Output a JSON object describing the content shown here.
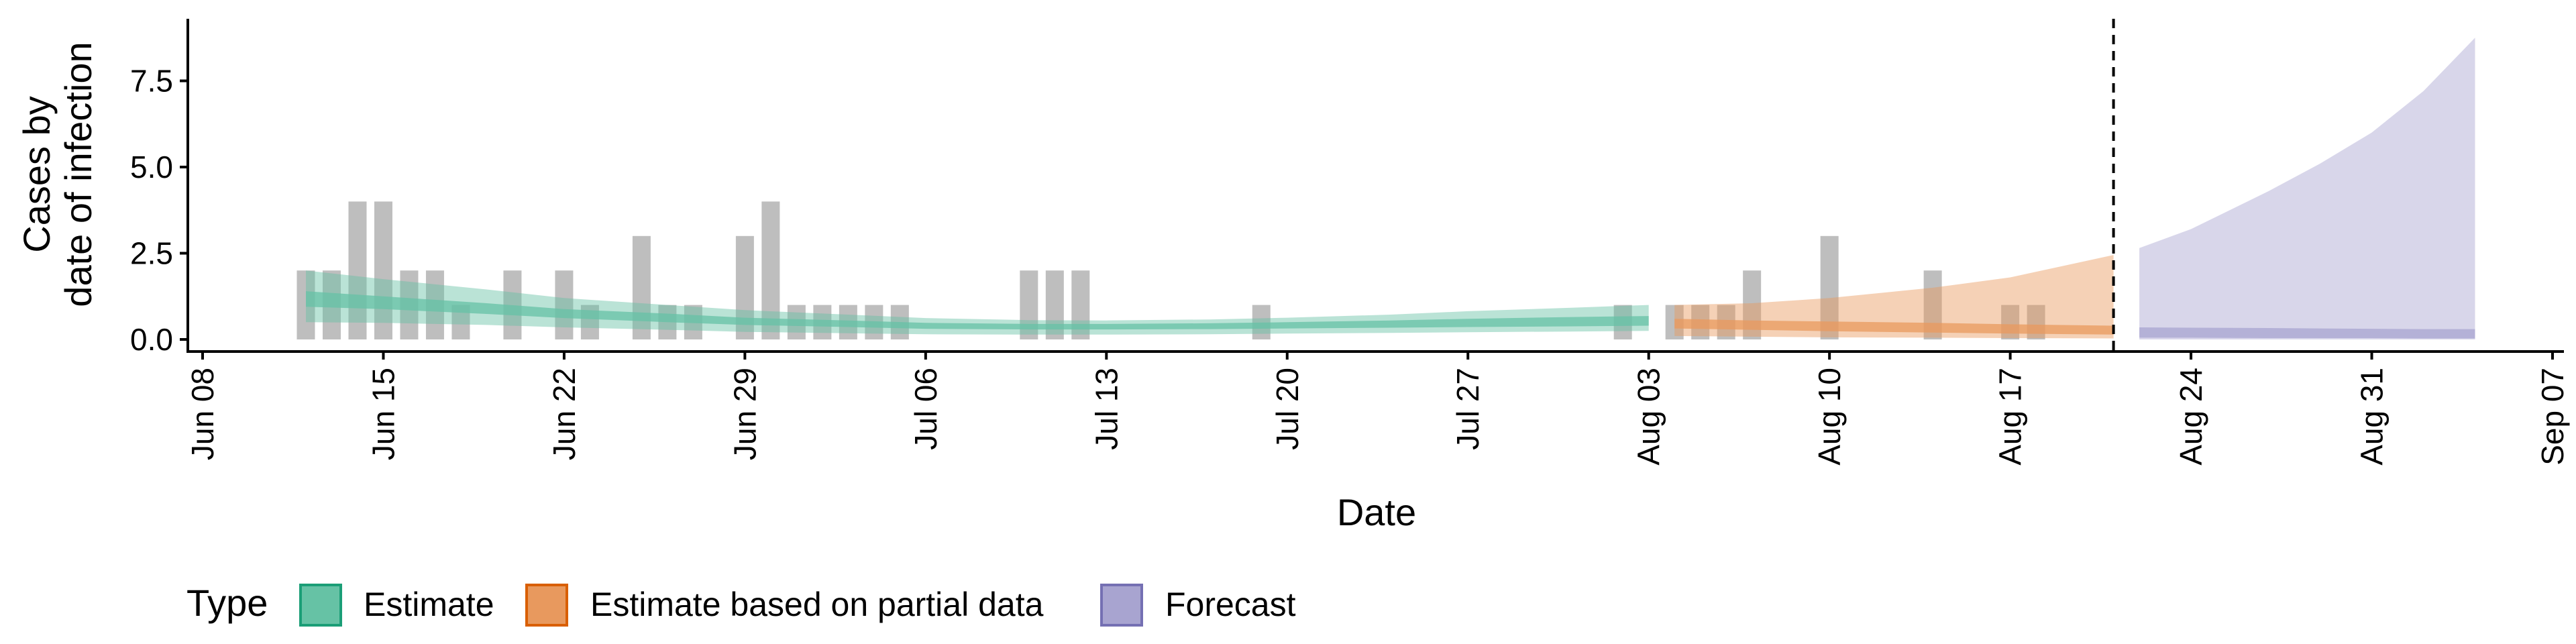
{
  "chart_data": {
    "type": "area",
    "xlabel": "Date",
    "ylabel_lines": [
      "Cases by",
      "date of infection"
    ],
    "ylim": [
      -0.35,
      9.3
    ],
    "y_ticks": [
      0.0,
      2.5,
      5.0,
      7.5
    ],
    "y_tick_labels": [
      "0.0",
      "2.5",
      "5.0",
      "7.5"
    ],
    "x_ticks": [
      "2020-06-08",
      "2020-06-15",
      "2020-06-22",
      "2020-06-29",
      "2020-07-06",
      "2020-07-13",
      "2020-07-20",
      "2020-07-27",
      "2020-08-03",
      "2020-08-10",
      "2020-08-17",
      "2020-08-24",
      "2020-08-31",
      "2020-09-07"
    ],
    "x_tick_labels": [
      "Jun 08",
      "Jun 15",
      "Jun 22",
      "Jun 29",
      "Jul 06",
      "Jul 13",
      "Jul 20",
      "Jul 27",
      "Aug 03",
      "Aug 10",
      "Aug 17",
      "Aug 24",
      "Aug 31",
      "Sep 07"
    ],
    "xlim": [
      "2020-06-08",
      "2020-09-07"
    ],
    "forecast_start": "2020-08-21",
    "grid": false,
    "legend_position": "bottom",
    "legend": {
      "title": "Type",
      "entries": [
        {
          "label": "Estimate",
          "fill": "#66c2a5",
          "stroke": "#1b9e77"
        },
        {
          "label": "Estimate based on partial data",
          "fill": "#e8995e",
          "stroke": "#d95f02"
        },
        {
          "label": "Forecast",
          "fill": "#a8a4d0",
          "stroke": "#7570b3"
        }
      ]
    },
    "reported_cases": {
      "color": "#b3b3b3",
      "x": [
        "2020-06-12",
        "2020-06-13",
        "2020-06-14",
        "2020-06-15",
        "2020-06-16",
        "2020-06-17",
        "2020-06-18",
        "2020-06-20",
        "2020-06-22",
        "2020-06-23",
        "2020-06-25",
        "2020-06-26",
        "2020-06-27",
        "2020-06-29",
        "2020-06-30",
        "2020-07-01",
        "2020-07-02",
        "2020-07-03",
        "2020-07-04",
        "2020-07-05",
        "2020-07-10",
        "2020-07-11",
        "2020-07-12",
        "2020-07-19",
        "2020-08-02",
        "2020-08-04",
        "2020-08-05",
        "2020-08-06",
        "2020-08-07",
        "2020-08-10",
        "2020-08-14",
        "2020-08-17",
        "2020-08-18"
      ],
      "values": [
        2,
        2,
        4,
        4,
        2,
        2,
        1,
        2,
        2,
        1,
        3,
        1,
        1,
        3,
        4,
        1,
        1,
        1,
        1,
        1,
        2,
        2,
        2,
        1,
        1,
        1,
        1,
        1,
        2,
        3,
        2,
        1,
        1
      ]
    },
    "series": [
      {
        "name": "Estimate",
        "fill": "#66c2a5",
        "x": [
          "2020-06-12",
          "2020-06-15",
          "2020-06-19",
          "2020-06-22",
          "2020-06-26",
          "2020-06-29",
          "2020-07-03",
          "2020-07-06",
          "2020-07-10",
          "2020-07-13",
          "2020-07-17",
          "2020-07-20",
          "2020-07-24",
          "2020-07-27",
          "2020-07-31",
          "2020-08-03"
        ],
        "outer_upper": [
          2.0,
          1.75,
          1.45,
          1.2,
          1.0,
          0.85,
          0.72,
          0.62,
          0.56,
          0.55,
          0.58,
          0.63,
          0.72,
          0.82,
          0.92,
          1.0
        ],
        "outer_lower": [
          0.5,
          0.48,
          0.42,
          0.35,
          0.28,
          0.22,
          0.18,
          0.15,
          0.14,
          0.14,
          0.15,
          0.17,
          0.19,
          0.21,
          0.23,
          0.25
        ],
        "inner_upper": [
          1.4,
          1.25,
          1.05,
          0.88,
          0.75,
          0.63,
          0.55,
          0.48,
          0.45,
          0.45,
          0.47,
          0.5,
          0.55,
          0.6,
          0.65,
          0.68
        ],
        "inner_lower": [
          0.95,
          0.88,
          0.74,
          0.62,
          0.5,
          0.42,
          0.36,
          0.31,
          0.29,
          0.29,
          0.3,
          0.32,
          0.34,
          0.36,
          0.38,
          0.4
        ]
      },
      {
        "name": "Estimate based on partial data",
        "fill": "#e8995e",
        "x": [
          "2020-08-04",
          "2020-08-07",
          "2020-08-10",
          "2020-08-14",
          "2020-08-17",
          "2020-08-21"
        ],
        "outer_upper": [
          1.0,
          1.05,
          1.2,
          1.5,
          1.8,
          2.45
        ],
        "outer_lower": [
          0.1,
          0.08,
          0.06,
          0.05,
          0.04,
          0.03
        ],
        "inner_upper": [
          0.6,
          0.55,
          0.52,
          0.48,
          0.44,
          0.4
        ],
        "inner_lower": [
          0.32,
          0.28,
          0.24,
          0.2,
          0.17,
          0.14
        ]
      },
      {
        "name": "Forecast",
        "fill": "#a8a4d0",
        "x": [
          "2020-08-22",
          "2020-08-24",
          "2020-08-27",
          "2020-08-29",
          "2020-08-31",
          "2020-09-02",
          "2020-09-04"
        ],
        "outer_upper": [
          2.65,
          3.2,
          4.3,
          5.1,
          6.0,
          7.2,
          8.75
        ],
        "outer_lower": [
          0.0,
          0.0,
          0.0,
          0.0,
          0.0,
          0.0,
          0.0
        ],
        "inner_upper": [
          0.35,
          0.34,
          0.33,
          0.32,
          0.31,
          0.3,
          0.3
        ],
        "inner_lower": [
          0.05,
          0.05,
          0.04,
          0.04,
          0.04,
          0.03,
          0.03
        ]
      }
    ]
  }
}
